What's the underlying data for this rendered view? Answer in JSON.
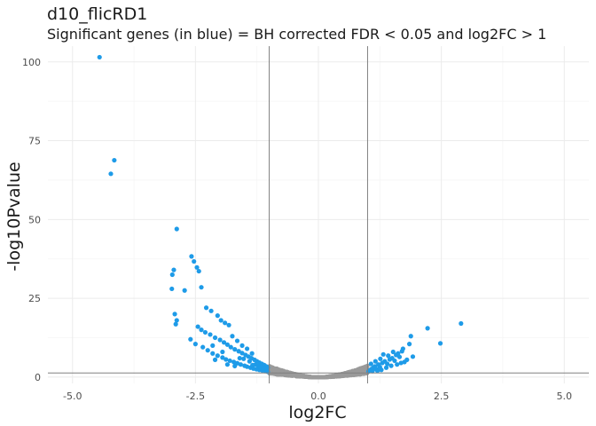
{
  "chart_data": {
    "type": "scatter",
    "title": "d10_flicRD1",
    "subtitle": "Significant genes (in blue) = BH corrected FDR < 0.05 and log2FC > 1",
    "xlabel": "log2FC",
    "ylabel": "-log10Pvalue",
    "xlim": [
      -5.5,
      5.5
    ],
    "ylim": [
      -2,
      105
    ],
    "x_ticks": [
      -5.0,
      -2.5,
      0.0,
      2.5,
      5.0
    ],
    "x_tick_labels": [
      "-5.0",
      "-2.5",
      "0.0",
      "2.5",
      "5.0"
    ],
    "y_ticks": [
      0,
      25,
      50,
      75,
      100
    ],
    "y_tick_labels": [
      "0",
      "25",
      "50",
      "75",
      "100"
    ],
    "grid": true,
    "vlines": [
      -1,
      1
    ],
    "hline": 1.3,
    "colors": {
      "significant": "#1e9be8",
      "not_significant": "#9a9a9a",
      "line": "#808080"
    },
    "series": [
      {
        "significance": "significant",
        "points": [
          [
            -4.45,
            101.5
          ],
          [
            -4.15,
            68.8
          ],
          [
            -4.22,
            64.5
          ],
          [
            -2.88,
            47.0
          ],
          [
            -2.58,
            38.3
          ],
          [
            -2.53,
            36.7
          ],
          [
            -2.47,
            34.8
          ],
          [
            -2.43,
            33.6
          ],
          [
            -2.94,
            34.0
          ],
          [
            -2.97,
            32.5
          ],
          [
            -2.38,
            28.5
          ],
          [
            -2.98,
            28.0
          ],
          [
            -2.72,
            27.5
          ],
          [
            -2.92,
            20.0
          ],
          [
            -2.88,
            18.0
          ],
          [
            -2.9,
            16.8
          ],
          [
            -2.28,
            22.0
          ],
          [
            -2.18,
            21.0
          ],
          [
            -2.05,
            19.5
          ],
          [
            -1.98,
            18.0
          ],
          [
            -1.9,
            17.2
          ],
          [
            -1.82,
            16.5
          ],
          [
            -2.45,
            16.0
          ],
          [
            -2.38,
            15.0
          ],
          [
            -2.3,
            14.2
          ],
          [
            -2.2,
            13.5
          ],
          [
            -2.1,
            12.5
          ],
          [
            -2.0,
            11.8
          ],
          [
            -1.92,
            11.0
          ],
          [
            -1.85,
            10.3
          ],
          [
            -1.78,
            9.5
          ],
          [
            -1.7,
            8.8
          ],
          [
            -1.62,
            8.2
          ],
          [
            -1.55,
            7.6
          ],
          [
            -1.48,
            7.0
          ],
          [
            -1.42,
            6.5
          ],
          [
            -1.36,
            6.0
          ],
          [
            -1.3,
            5.5
          ],
          [
            -1.25,
            5.0
          ],
          [
            -1.2,
            4.6
          ],
          [
            -1.15,
            4.2
          ],
          [
            -1.1,
            3.8
          ],
          [
            -1.06,
            3.4
          ],
          [
            -1.03,
            3.0
          ],
          [
            -2.25,
            8.5
          ],
          [
            -2.15,
            7.5
          ],
          [
            -2.05,
            6.8
          ],
          [
            -1.95,
            6.2
          ],
          [
            -1.88,
            5.6
          ],
          [
            -1.8,
            5.2
          ],
          [
            -1.72,
            4.8
          ],
          [
            -1.65,
            4.4
          ],
          [
            -1.58,
            4.0
          ],
          [
            -1.5,
            3.6
          ],
          [
            -1.45,
            3.3
          ],
          [
            -1.38,
            3.0
          ],
          [
            -1.32,
            2.7
          ],
          [
            -1.26,
            2.5
          ],
          [
            -1.2,
            2.3
          ],
          [
            -1.14,
            2.1
          ],
          [
            -1.08,
            1.9
          ],
          [
            -1.03,
            1.7
          ],
          [
            -2.35,
            9.5
          ],
          [
            -2.6,
            12.0
          ],
          [
            -2.5,
            10.5
          ],
          [
            -1.75,
            13.0
          ],
          [
            -1.65,
            11.5
          ],
          [
            -1.55,
            10.0
          ],
          [
            -1.45,
            9.0
          ],
          [
            -1.35,
            7.5
          ],
          [
            -1.6,
            6.0
          ],
          [
            -1.4,
            5.0
          ],
          [
            -1.28,
            4.0
          ],
          [
            -1.18,
            3.2
          ],
          [
            -1.12,
            2.8
          ],
          [
            -1.05,
            2.4
          ],
          [
            -1.7,
            3.5
          ],
          [
            -1.85,
            4.0
          ],
          [
            -2.1,
            5.5
          ],
          [
            -1.95,
            8.0
          ],
          [
            -2.15,
            10.0
          ],
          [
            -1.52,
            5.8
          ],
          [
            -1.34,
            3.8
          ],
          [
            -1.22,
            3.5
          ],
          [
            1.02,
            1.8
          ],
          [
            1.05,
            2.2
          ],
          [
            1.08,
            2.6
          ],
          [
            1.12,
            3.0
          ],
          [
            1.15,
            3.4
          ],
          [
            1.18,
            2.5
          ],
          [
            1.22,
            4.0
          ],
          [
            1.25,
            3.2
          ],
          [
            1.3,
            4.5
          ],
          [
            1.35,
            5.0
          ],
          [
            1.4,
            4.2
          ],
          [
            1.45,
            5.6
          ],
          [
            1.5,
            6.0
          ],
          [
            1.55,
            5.2
          ],
          [
            1.58,
            7.0
          ],
          [
            1.62,
            7.5
          ],
          [
            1.65,
            6.4
          ],
          [
            1.7,
            8.2
          ],
          [
            1.75,
            4.8
          ],
          [
            1.8,
            5.5
          ],
          [
            1.85,
            10.5
          ],
          [
            1.88,
            13.0
          ],
          [
            1.92,
            6.5
          ],
          [
            2.22,
            15.5
          ],
          [
            2.48,
            10.7
          ],
          [
            2.9,
            17.0
          ],
          [
            1.1,
            1.9
          ],
          [
            1.2,
            2.0
          ],
          [
            1.28,
            2.3
          ],
          [
            1.38,
            3.0
          ],
          [
            1.48,
            3.6
          ],
          [
            1.6,
            4.0
          ],
          [
            1.32,
            7.2
          ],
          [
            1.42,
            6.8
          ],
          [
            1.52,
            8.0
          ],
          [
            1.72,
            9.0
          ],
          [
            1.26,
            5.8
          ],
          [
            1.16,
            5.0
          ],
          [
            1.07,
            4.2
          ],
          [
            1.68,
            4.5
          ]
        ]
      },
      {
        "significance": "not_significant",
        "x_range": [
          -1.0,
          1.0
        ],
        "shape": "baseline valley: -log10P rises from about 0 near log2FC 0 to about 3.5 at |log2FC| = 1"
      }
    ]
  }
}
